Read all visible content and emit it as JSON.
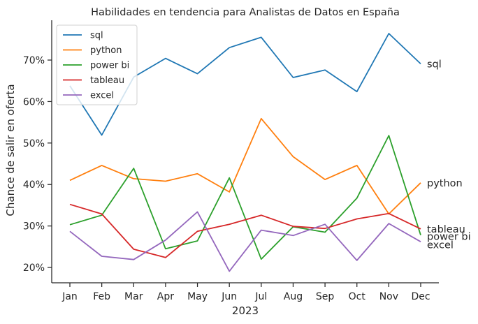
{
  "chart_data": {
    "type": "line",
    "title": "Habilidades en tendencia para Analistas de Datos en España",
    "xlabel": "2023",
    "ylabel": "Chance de salir en oferta",
    "categories": [
      "Jan",
      "Feb",
      "Mar",
      "Apr",
      "May",
      "Jun",
      "Jul",
      "Aug",
      "Sep",
      "Oct",
      "Nov",
      "Dec"
    ],
    "ylim": [
      16.3,
      79.6
    ],
    "yticks": [
      20,
      30,
      40,
      50,
      60,
      70
    ],
    "ytick_labels": [
      "20%",
      "30%",
      "40%",
      "50%",
      "60%",
      "70%"
    ],
    "grid": false,
    "legend_position": "top-left",
    "series": [
      {
        "name": "sql",
        "color": "#1f77b4",
        "values": [
          63.8,
          51.9,
          65.9,
          70.4,
          66.7,
          73.0,
          75.5,
          65.8,
          67.6,
          62.4,
          76.4,
          69.1
        ]
      },
      {
        "name": "python",
        "color": "#ff7f0e",
        "values": [
          41.0,
          44.6,
          41.4,
          40.8,
          42.6,
          38.2,
          55.9,
          46.7,
          41.2,
          44.6,
          32.9,
          40.4
        ]
      },
      {
        "name": "power bi",
        "color": "#2ca02c",
        "values": [
          30.3,
          32.6,
          43.9,
          24.5,
          26.4,
          41.6,
          22.0,
          29.8,
          28.5,
          36.7,
          51.8,
          27.8
        ]
      },
      {
        "name": "tableau",
        "color": "#d62728",
        "values": [
          35.2,
          32.9,
          24.4,
          22.4,
          28.7,
          30.4,
          32.6,
          29.9,
          29.4,
          31.7,
          33.0,
          29.3
        ]
      },
      {
        "name": "excel",
        "color": "#9467bd",
        "values": [
          28.7,
          22.7,
          21.9,
          26.6,
          33.4,
          19.1,
          29.0,
          27.7,
          30.4,
          21.7,
          30.6,
          26.2
        ]
      }
    ],
    "end_labels": [
      {
        "series": "sql",
        "text": "sql",
        "y": 69.1
      },
      {
        "series": "python",
        "text": "python",
        "y": 40.4
      },
      {
        "series": "tableau",
        "text": "tableau",
        "y": 29.3
      },
      {
        "series": "power bi",
        "text": "power bi",
        "y": 27.5
      },
      {
        "series": "excel",
        "text": "excel",
        "y": 25.5
      }
    ]
  }
}
